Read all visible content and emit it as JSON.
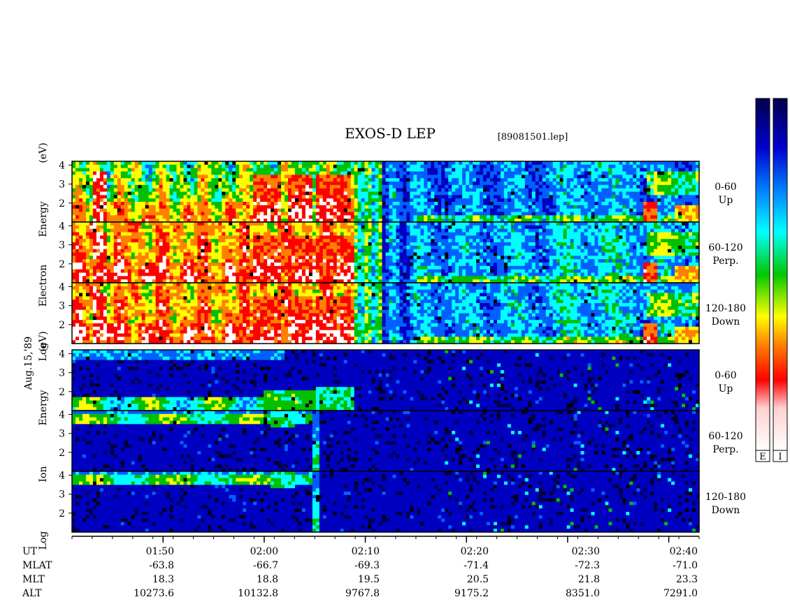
{
  "chart_data": {
    "type": "heatmap",
    "title": "EXOS-D LEP",
    "subtitle": "[89081501.lep]",
    "date_label": "Aug.15,'89",
    "groups": [
      {
        "name": "electron",
        "ylabel": [
          "Log",
          "Electron",
          "Energy",
          "(eV)"
        ],
        "panels": [
          {
            "range": "0-60",
            "dir": "Up"
          },
          {
            "range": "60-120",
            "dir": "Perp."
          },
          {
            "range": "120-180",
            "dir": "Down"
          }
        ]
      },
      {
        "name": "ion",
        "ylabel": [
          "Log",
          "Ion",
          "Energy",
          "(eV)"
        ],
        "panels": [
          {
            "range": "0-60",
            "dir": "Up"
          },
          {
            "range": "60-120",
            "dir": "Perp."
          },
          {
            "range": "120-180",
            "dir": "Down"
          }
        ]
      }
    ],
    "y_ticks": [
      "4",
      "3",
      "2"
    ],
    "y_log_range": [
      1,
      4.2
    ],
    "x_time_range": [
      "01:41",
      "02:43"
    ],
    "x_ticks_minutes": [
      10,
      20,
      30,
      40,
      50,
      60
    ],
    "footer": {
      "labels": [
        "UT",
        "MLAT",
        "MLT",
        "ALT"
      ],
      "columns": [
        {
          "UT": "01:50",
          "MLAT": "-63.8",
          "MLT": "18.3",
          "ALT": "10273.6"
        },
        {
          "UT": "02:00",
          "MLAT": "-66.7",
          "MLT": "18.8",
          "ALT": "10132.8"
        },
        {
          "UT": "02:10",
          "MLAT": "-69.3",
          "MLT": "19.5",
          "ALT": "9767.8"
        },
        {
          "UT": "02:20",
          "MLAT": "-71.4",
          "MLT": "20.5",
          "ALT": "9175.2"
        },
        {
          "UT": "02:30",
          "MLAT": "-72.3",
          "MLT": "21.8",
          "ALT": "8351.0"
        },
        {
          "UT": "02:40",
          "MLAT": "-71.0",
          "MLT": "23.3",
          "ALT": "7291.0"
        }
      ]
    },
    "colorbars": [
      {
        "label": "E"
      },
      {
        "label": "I"
      }
    ],
    "colorscale": [
      "#ffffff",
      "#ff0000",
      "#ff8000",
      "#ffff00",
      "#00c000",
      "#00ffff",
      "#0060ff",
      "#0000c0",
      "#00004a"
    ]
  }
}
